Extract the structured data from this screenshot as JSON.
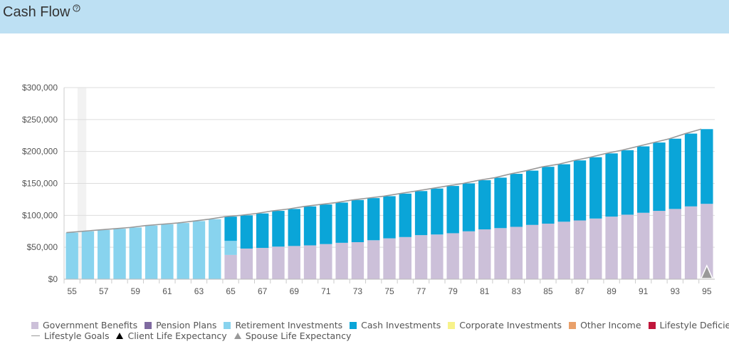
{
  "header": {
    "title": "Cash Flow",
    "help_icon": "question-circle-icon",
    "help_glyph": "?"
  },
  "colors": {
    "header_bg": "#bde0f3",
    "government": "#ccc0d9",
    "pension": "#7f6aa0",
    "retirement": "#88d3ee",
    "cash": "#0aa5d8",
    "corporate": "#f7f28a",
    "other": "#e9a06a",
    "deficiency": "#c0163b",
    "goal_line": "#999999",
    "client_marker": "#000000",
    "spouse_marker": "#999999"
  },
  "legend": {
    "row1": [
      {
        "label": "Government Benefits",
        "color_key": "government",
        "kind": "box"
      },
      {
        "label": "Pension Plans",
        "color_key": "pension",
        "kind": "box"
      },
      {
        "label": "Retirement Investments",
        "color_key": "retirement",
        "kind": "box"
      },
      {
        "label": "Cash Investments",
        "color_key": "cash",
        "kind": "box"
      },
      {
        "label": "Corporate Investments",
        "color_key": "corporate",
        "kind": "box"
      },
      {
        "label": "Other Income",
        "color_key": "other",
        "kind": "box"
      },
      {
        "label": "Lifestyle Deficiencies",
        "color_key": "deficiency",
        "kind": "box"
      }
    ],
    "row2": [
      {
        "label": "Lifestyle Goals",
        "kind": "line"
      },
      {
        "label": "Client Life Expectancy",
        "kind": "triangle-black"
      },
      {
        "label": "Spouse Life Expectancy",
        "kind": "triangle-gray"
      }
    ]
  },
  "chart_data": {
    "type": "bar",
    "stacked": true,
    "x": [
      55,
      56,
      57,
      58,
      59,
      60,
      61,
      62,
      63,
      64,
      65,
      66,
      67,
      68,
      69,
      70,
      71,
      72,
      73,
      74,
      75,
      76,
      77,
      78,
      79,
      80,
      81,
      82,
      83,
      84,
      85,
      86,
      87,
      88,
      89,
      90,
      91,
      92,
      93,
      94,
      95
    ],
    "x_tick_labels": [
      "55",
      "57",
      "59",
      "61",
      "63",
      "65",
      "67",
      "69",
      "71",
      "73",
      "75",
      "77",
      "79",
      "81",
      "83",
      "85",
      "87",
      "89",
      "91",
      "93",
      "95"
    ],
    "y_tick_labels": [
      "$0",
      "$50,000",
      "$100,000",
      "$150,000",
      "$200,000",
      "$250,000",
      "$300,000"
    ],
    "ylim": [
      0,
      300000
    ],
    "grid": true,
    "highlight_x": 55,
    "series": [
      {
        "name": "Government Benefits",
        "color_key": "government",
        "values": [
          0,
          0,
          0,
          0,
          0,
          0,
          0,
          0,
          0,
          0,
          38000,
          48000,
          49000,
          51000,
          52000,
          53000,
          55000,
          57000,
          58000,
          61000,
          64000,
          66000,
          69000,
          70000,
          72000,
          75000,
          78000,
          80000,
          82000,
          85000,
          87000,
          90000,
          92000,
          95000,
          98000,
          101000,
          104000,
          107000,
          110000,
          114000,
          118000
        ]
      },
      {
        "name": "Retirement Investments",
        "color_key": "retirement",
        "values": [
          73000,
          75000,
          77000,
          79000,
          81000,
          84000,
          86000,
          88000,
          91000,
          94000,
          22000,
          0,
          0,
          0,
          0,
          0,
          0,
          0,
          0,
          0,
          0,
          0,
          0,
          0,
          0,
          0,
          0,
          0,
          0,
          0,
          0,
          0,
          0,
          0,
          0,
          0,
          0,
          0,
          0,
          0,
          0
        ]
      },
      {
        "name": "Cash Investments",
        "color_key": "cash",
        "values": [
          0,
          0,
          0,
          0,
          0,
          0,
          0,
          0,
          0,
          0,
          38000,
          52000,
          54000,
          56000,
          58000,
          61000,
          62000,
          63000,
          66000,
          66000,
          66000,
          68000,
          69000,
          72000,
          74000,
          75000,
          77000,
          79000,
          83000,
          85000,
          89000,
          90000,
          94000,
          96000,
          99000,
          101000,
          104000,
          107000,
          110000,
          114000,
          117000
        ]
      }
    ],
    "lifestyle_goals": [
      73000,
      75000,
      77000,
      79000,
      81000,
      84000,
      86000,
      88000,
      91000,
      94000,
      98000,
      100000,
      103000,
      107000,
      110000,
      114000,
      117000,
      120000,
      124000,
      127000,
      130000,
      134000,
      138000,
      142000,
      146000,
      150000,
      155000,
      159000,
      165000,
      170000,
      176000,
      180000,
      186000,
      191000,
      197000,
      202000,
      208000,
      214000,
      220000,
      228000,
      235000
    ],
    "client_life_expectancy_x": null,
    "spouse_life_expectancy_x": 95
  }
}
